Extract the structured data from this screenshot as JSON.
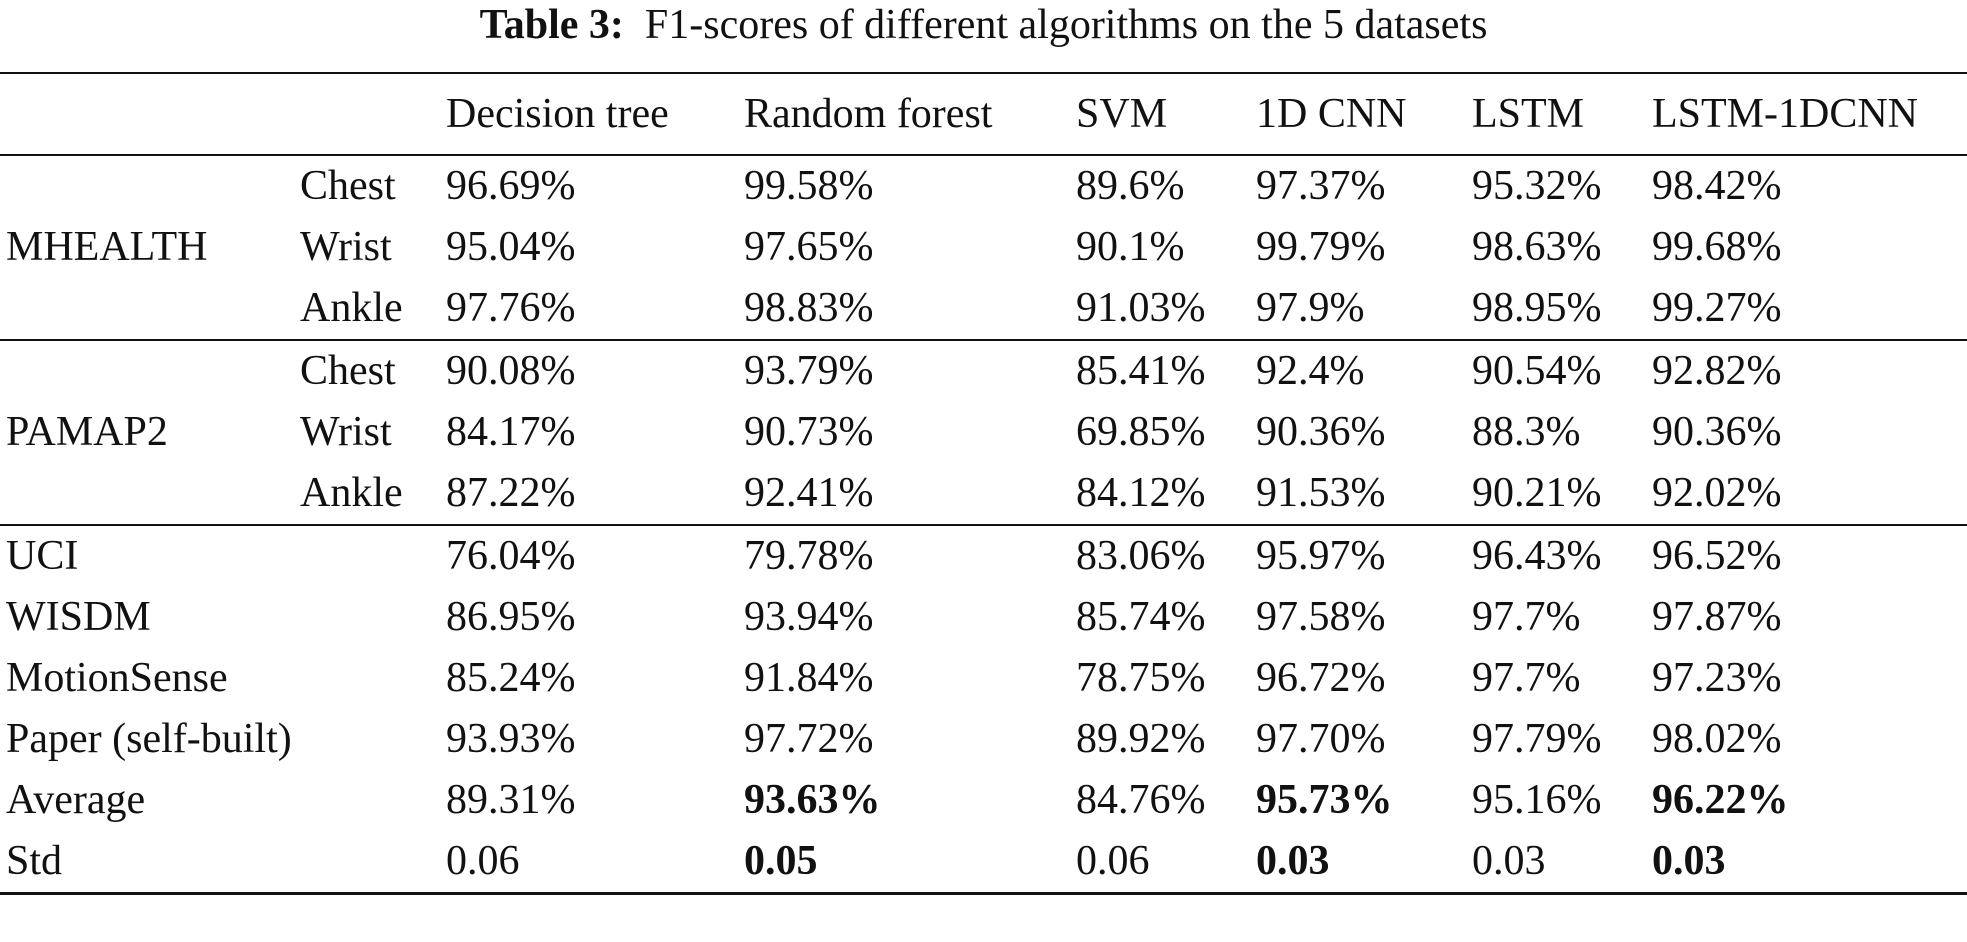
{
  "caption": {
    "label": "Table 3:",
    "text": "F1-scores of different algorithms on the 5 datasets"
  },
  "table": {
    "columns": [
      "Decision tree",
      "Random forest",
      "SVM",
      "1D CNN",
      "LSTM",
      "LSTM-1DCNN"
    ],
    "groups": [
      {
        "dataset": "MHEALTH",
        "rows": [
          {
            "position": "Chest",
            "values": [
              "96.69%",
              "99.58%",
              "89.6%",
              "97.37%",
              "95.32%",
              "98.42%"
            ]
          },
          {
            "position": "Wrist",
            "values": [
              "95.04%",
              "97.65%",
              "90.1%",
              "99.79%",
              "98.63%",
              "99.68%"
            ]
          },
          {
            "position": "Ankle",
            "values": [
              "97.76%",
              "98.83%",
              "91.03%",
              "97.9%",
              "98.95%",
              "99.27%"
            ]
          }
        ]
      },
      {
        "dataset": "PAMAP2",
        "rows": [
          {
            "position": "Chest",
            "values": [
              "90.08%",
              "93.79%",
              "85.41%",
              "92.4%",
              "90.54%",
              "92.82%"
            ]
          },
          {
            "position": "Wrist",
            "values": [
              "84.17%",
              "90.73%",
              "69.85%",
              "90.36%",
              "88.3%",
              "90.36%"
            ]
          },
          {
            "position": "Ankle",
            "values": [
              "87.22%",
              "92.41%",
              "84.12%",
              "91.53%",
              "90.21%",
              "92.02%"
            ]
          }
        ]
      }
    ],
    "single_rows": [
      {
        "dataset": "UCI",
        "values": [
          "76.04%",
          "79.78%",
          "83.06%",
          "95.97%",
          "96.43%",
          "96.52%"
        ]
      },
      {
        "dataset": "WISDM",
        "values": [
          "86.95%",
          "93.94%",
          "85.74%",
          "97.58%",
          "97.7%",
          "97.87%"
        ]
      },
      {
        "dataset": "MotionSense",
        "values": [
          "85.24%",
          "91.84%",
          "78.75%",
          "96.72%",
          "97.7%",
          "97.23%"
        ]
      },
      {
        "dataset": "Paper (self-built)",
        "values": [
          "93.93%",
          "97.72%",
          "89.92%",
          "97.70%",
          "97.79%",
          "98.02%"
        ]
      },
      {
        "dataset": "Average",
        "values": [
          "89.31%",
          "93.63%",
          "84.76%",
          "95.73%",
          "95.16%",
          "96.22%"
        ],
        "bold": [
          1,
          3,
          5
        ]
      },
      {
        "dataset": "Std",
        "values": [
          "0.06",
          "0.05",
          "0.06",
          "0.03",
          "0.03",
          "0.03"
        ],
        "bold": [
          1,
          3,
          5
        ]
      }
    ]
  }
}
